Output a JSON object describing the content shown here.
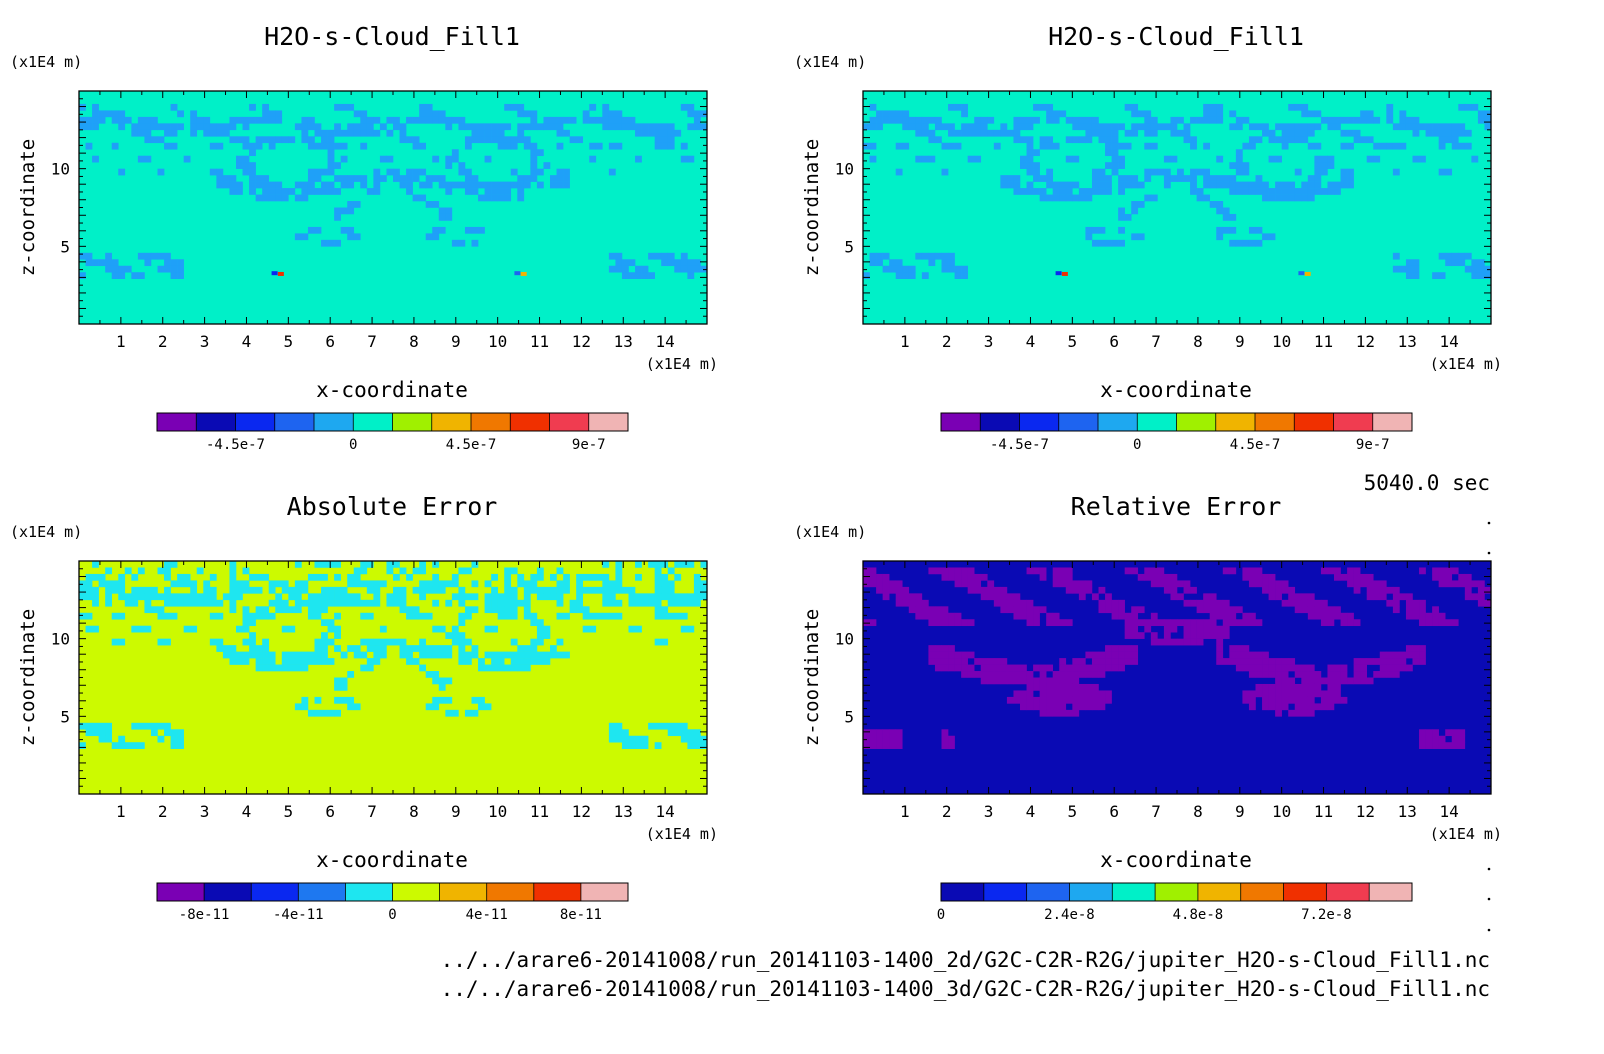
{
  "figure": {
    "time_label": "5040.0 sec",
    "files": [
      "../../arare6-20141008/run_20141103-1400_2d/G2C-C2R-R2G/jupiter_H2O-s-Cloud_Fill1.nc",
      "../../arare6-20141008/run_20141103-1400_3d/G2C-C2R-R2G/jupiter_H2O-s-Cloud_Fill1.nc"
    ]
  },
  "chart_data": [
    {
      "id": "panel-top-left",
      "type": "heatmap",
      "title": "H2O-s-Cloud_Fill1",
      "xlabel": "x-coordinate",
      "ylabel": "z-coordinate",
      "x_unit": "(x1E4 m)",
      "y_unit": "(x1E4 m)",
      "xlim": [
        0,
        15
      ],
      "ylim": [
        0,
        15
      ],
      "x_ticks": [
        "1",
        "2",
        "3",
        "4",
        "5",
        "6",
        "7",
        "8",
        "9",
        "10",
        "11",
        "12",
        "13",
        "14"
      ],
      "y_ticks": [
        "5",
        "10"
      ],
      "pattern": "cloud",
      "base_color": "#00f0c8",
      "feature_color": "#1fa0f8",
      "colorbar": {
        "colors": [
          "#7a00b4",
          "#0a0ab4",
          "#0a28f0",
          "#1e64f0",
          "#1ea8f0",
          "#00f0c8",
          "#a0f000",
          "#f0b400",
          "#f07800",
          "#f03000",
          "#f03c50",
          "#f0b4b4"
        ],
        "tick_labels": [
          "-4.5e-7",
          "0",
          "4.5e-7",
          "9e-7"
        ],
        "tick_positions": [
          2,
          5,
          8,
          11
        ]
      }
    },
    {
      "id": "panel-top-right",
      "type": "heatmap",
      "title": "H2O-s-Cloud_Fill1",
      "xlabel": "x-coordinate",
      "ylabel": "z-coordinate",
      "x_unit": "(x1E4 m)",
      "y_unit": "(x1E4 m)",
      "xlim": [
        0,
        15
      ],
      "ylim": [
        0,
        15
      ],
      "x_ticks": [
        "1",
        "2",
        "3",
        "4",
        "5",
        "6",
        "7",
        "8",
        "9",
        "10",
        "11",
        "12",
        "13",
        "14"
      ],
      "y_ticks": [
        "5",
        "10"
      ],
      "pattern": "cloud",
      "base_color": "#00f0c8",
      "feature_color": "#1fa0f8",
      "colorbar": {
        "colors": [
          "#7a00b4",
          "#0a0ab4",
          "#0a28f0",
          "#1e64f0",
          "#1ea8f0",
          "#00f0c8",
          "#a0f000",
          "#f0b400",
          "#f07800",
          "#f03000",
          "#f03c50",
          "#f0b4b4"
        ],
        "tick_labels": [
          "-4.5e-7",
          "0",
          "4.5e-7",
          "9e-7"
        ],
        "tick_positions": [
          2,
          5,
          8,
          11
        ]
      }
    },
    {
      "id": "panel-bottom-left",
      "type": "heatmap",
      "title": "Absolute Error",
      "xlabel": "x-coordinate",
      "ylabel": "z-coordinate",
      "x_unit": "(x1E4 m)",
      "y_unit": "(x1E4 m)",
      "xlim": [
        0,
        15
      ],
      "ylim": [
        0,
        15
      ],
      "x_ticks": [
        "1",
        "2",
        "3",
        "4",
        "5",
        "6",
        "7",
        "8",
        "9",
        "10",
        "11",
        "12",
        "13",
        "14"
      ],
      "y_ticks": [
        "5",
        "10"
      ],
      "pattern": "abs",
      "base_color": "#ccfa00",
      "feature_color": "#1ee6f0",
      "colorbar": {
        "colors": [
          "#7a00b4",
          "#0a0ab4",
          "#0a28f0",
          "#1e78f0",
          "#1ee6f0",
          "#ccfa00",
          "#f0b400",
          "#f07800",
          "#f03000",
          "#f0b4b4"
        ],
        "tick_labels": [
          "-8e-11",
          "-4e-11",
          "0",
          "4e-11",
          "8e-11"
        ],
        "tick_positions": [
          1,
          3,
          5,
          7,
          9
        ]
      }
    },
    {
      "id": "panel-bottom-right",
      "type": "heatmap",
      "title": "Relative Error",
      "xlabel": "x-coordinate",
      "ylabel": "z-coordinate",
      "x_unit": "(x1E4 m)",
      "y_unit": "(x1E4 m)",
      "xlim": [
        0,
        15
      ],
      "ylim": [
        0,
        15
      ],
      "x_ticks": [
        "1",
        "2",
        "3",
        "4",
        "5",
        "6",
        "7",
        "8",
        "9",
        "10",
        "11",
        "12",
        "13",
        "14"
      ],
      "y_ticks": [
        "5",
        "10"
      ],
      "pattern": "rel",
      "base_color": "#0a0ab4",
      "feature_color": "#7a00b4",
      "colorbar": {
        "colors": [
          "#0a0ab4",
          "#0a28f0",
          "#1e64f0",
          "#1ea8f0",
          "#00f0c8",
          "#a0f000",
          "#f0b400",
          "#f07800",
          "#f03000",
          "#f03c50",
          "#f0b4b4"
        ],
        "tick_labels": [
          "0",
          "2.4e-8",
          "4.8e-8",
          "7.2e-8"
        ],
        "tick_positions": [
          0,
          3,
          6,
          9
        ]
      }
    }
  ]
}
